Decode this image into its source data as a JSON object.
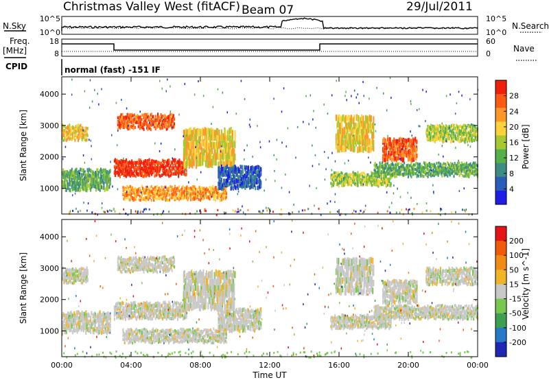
{
  "header": {
    "title": "Christmas Valley West (fitACF)",
    "beam": "Beam 07",
    "date": "29/Jul/2011"
  },
  "top_panels": {
    "nsky_label": "N.Sky",
    "nsearch_label": "N.Search",
    "noise_ticks": [
      "10^5",
      "10^0"
    ],
    "freq_label": "Freq.",
    "freq_unit": "[MHz]",
    "freq_ticks": [
      "18",
      "8"
    ],
    "nave_label": "Nave",
    "nave_ticks": [
      "60",
      "0"
    ],
    "cpid_label": "CPID",
    "cpid_text": "normal (fast) -151 IF"
  },
  "chart_data": [
    {
      "type": "heatmap",
      "name": "power",
      "ylabel": "Slant Range [km]",
      "xlabel": "Time UT",
      "x_ticks": [
        "00:00",
        "04:00",
        "08:00",
        "12:00",
        "16:00",
        "20:00",
        "00:00"
      ],
      "xlim_hours": [
        0,
        24
      ],
      "y_ticks": [
        1000,
        2000,
        3000,
        4000
      ],
      "ylim": [
        180,
        4550
      ],
      "colorbar": {
        "label": "Power [dB]",
        "ticks": [
          "28",
          "24",
          "20",
          "16",
          "12",
          "8",
          "4"
        ],
        "colors": [
          "#1e1ee6",
          "#2a5fb8",
          "#3d8c84",
          "#55b04a",
          "#a8c832",
          "#ffd23c",
          "#ff9628",
          "#ff5a14",
          "#f01e0a"
        ]
      }
    },
    {
      "type": "heatmap",
      "name": "velocity",
      "ylabel": "Slant Range [km]",
      "xlabel": "Time UT",
      "x_ticks": [
        "00:00",
        "04:00",
        "08:00",
        "12:00",
        "16:00",
        "20:00",
        "00:00"
      ],
      "xlim_hours": [
        0,
        24
      ],
      "y_ticks": [
        1000,
        2000,
        3000,
        4000
      ],
      "ylim": [
        180,
        4550
      ],
      "colorbar": {
        "label": "Velocity [m s^-1]",
        "ticks": [
          "200",
          "100",
          "50",
          "15",
          "-15",
          "-50",
          "-100",
          "-200"
        ],
        "colors": [
          "#1e28b4",
          "#2878c8",
          "#3ca050",
          "#78c850",
          "#c8c8c8",
          "#f0b428",
          "#f08c14",
          "#f05a0a",
          "#e61414"
        ]
      }
    }
  ]
}
